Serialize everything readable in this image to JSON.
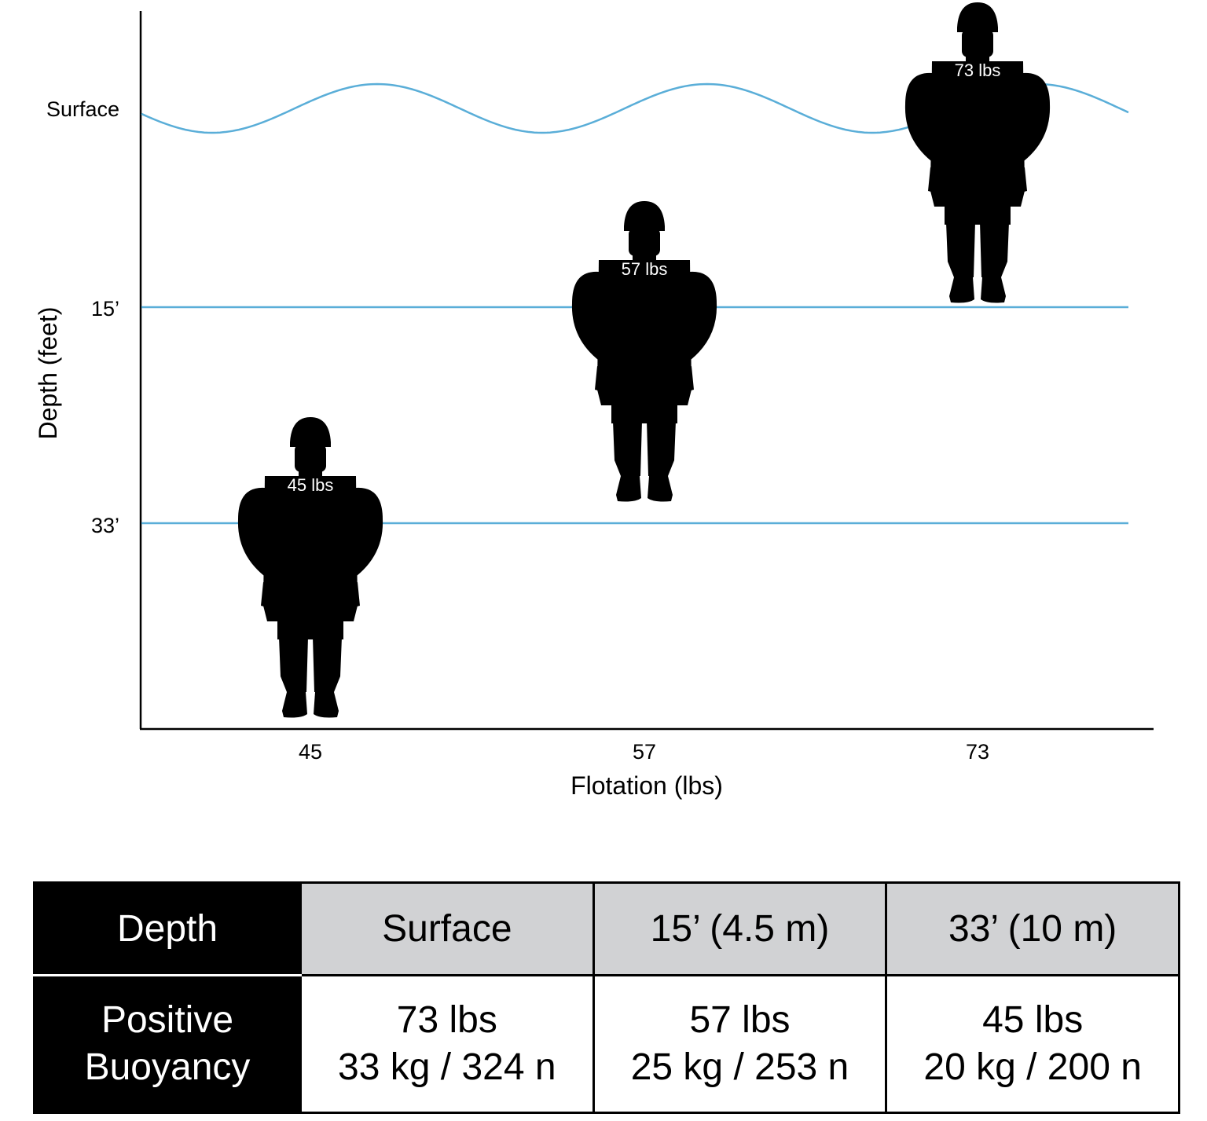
{
  "chart_data": {
    "type": "scatter",
    "xlabel": "Flotation (lbs)",
    "ylabel": "Depth (feet)",
    "x_ticks": [
      "45",
      "57",
      "73"
    ],
    "y_ticks": [
      "Surface",
      "15’",
      "33’"
    ],
    "points": [
      {
        "x": 45,
        "depth_ft": 33,
        "label": "45 lbs"
      },
      {
        "x": 57,
        "depth_ft": 15,
        "label": "57 lbs"
      },
      {
        "x": 73,
        "depth_ft": 0,
        "label": "73 lbs"
      }
    ],
    "line_color": "#5aaed8",
    "marker": "soldier-silhouette",
    "grid": false
  },
  "table": {
    "header_label": "Depth",
    "row_label_line1": "Positive",
    "row_label_line2": "Buoyancy",
    "columns": [
      {
        "depth": "Surface",
        "lbs": "73 lbs",
        "metric": "33 kg / 324 n"
      },
      {
        "depth": "15’ (4.5 m)",
        "lbs": "57 lbs",
        "metric": "25 kg / 253 n"
      },
      {
        "depth": "33’ (10 m)",
        "lbs": "45 lbs",
        "metric": "20 kg / 200 n"
      }
    ]
  }
}
